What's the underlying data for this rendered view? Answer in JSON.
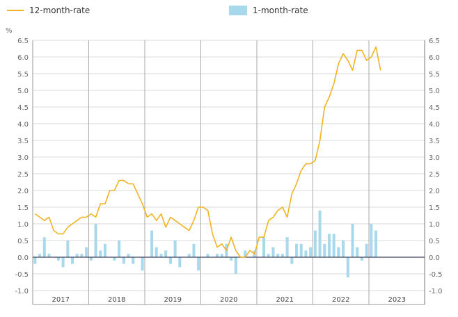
{
  "colors": {
    "line": "#f0b323",
    "bars": "#a8d8ec",
    "grid": "#d9d9d9",
    "yeargrid": "#aaaaaa",
    "zero": "#3a3f5c",
    "axis": "#999999"
  },
  "chart_data": {
    "type": "bar+line",
    "legend": {
      "line_label": "12-month-rate",
      "bar_label": "1-month-rate"
    },
    "unit_label": "%",
    "ylim": [
      -1.0,
      6.5
    ],
    "yticks": [
      "6.5",
      "6.0",
      "5.5",
      "5.0",
      "4.5",
      "4.0",
      "3.5",
      "3.0",
      "2.5",
      "2.0",
      "1.5",
      "1.0",
      "0.5",
      "0.0",
      "-0.5",
      "-1.0"
    ],
    "years": [
      "2017",
      "2018",
      "2019",
      "2020",
      "2021",
      "2022",
      "2023"
    ],
    "start": "2017-01",
    "series": [
      {
        "name": "12-month-rate",
        "kind": "line",
        "values": [
          1.3,
          1.2,
          1.1,
          1.2,
          0.8,
          0.7,
          0.7,
          0.9,
          1.0,
          1.1,
          1.2,
          1.2,
          1.3,
          1.2,
          1.6,
          1.6,
          2.0,
          2.0,
          2.3,
          2.3,
          2.2,
          2.2,
          1.9,
          1.6,
          1.2,
          1.3,
          1.1,
          1.3,
          0.9,
          1.2,
          1.1,
          1.0,
          0.9,
          0.8,
          1.1,
          1.5,
          1.5,
          1.4,
          0.7,
          0.3,
          0.4,
          0.2,
          0.6,
          0.2,
          0.0,
          0.0,
          0.2,
          0.1,
          0.6,
          0.6,
          1.1,
          1.2,
          1.4,
          1.5,
          1.2,
          1.9,
          2.2,
          2.6,
          2.8,
          2.8,
          2.9,
          3.5,
          4.5,
          4.8,
          5.2,
          5.8,
          6.1,
          5.9,
          5.6,
          6.2,
          6.2,
          5.9,
          6.0,
          6.3,
          5.6
        ]
      },
      {
        "name": "1-month-rate",
        "kind": "bar",
        "values": [
          -0.2,
          0.1,
          0.6,
          0.1,
          0.0,
          -0.1,
          -0.3,
          0.5,
          -0.2,
          0.1,
          0.1,
          0.3,
          -0.1,
          1.0,
          0.2,
          0.4,
          0.0,
          -0.1,
          0.5,
          -0.2,
          0.1,
          -0.2,
          0.0,
          -0.4,
          0.0,
          0.8,
          0.3,
          0.1,
          0.2,
          -0.2,
          0.5,
          -0.3,
          0.0,
          0.1,
          0.4,
          -0.4,
          0.0,
          0.1,
          0.0,
          0.1,
          0.1,
          0.4,
          -0.1,
          -0.5,
          0.0,
          0.2,
          0.0,
          0.2,
          0.0,
          0.6,
          0.1,
          0.3,
          0.1,
          0.1,
          0.6,
          -0.2,
          0.4,
          0.4,
          0.2,
          0.3,
          0.8,
          1.4,
          0.4,
          0.7,
          0.7,
          0.3,
          0.5,
          -0.6,
          1.0,
          0.3,
          -0.1,
          0.4,
          1.0,
          0.8,
          0.0
        ]
      }
    ]
  }
}
